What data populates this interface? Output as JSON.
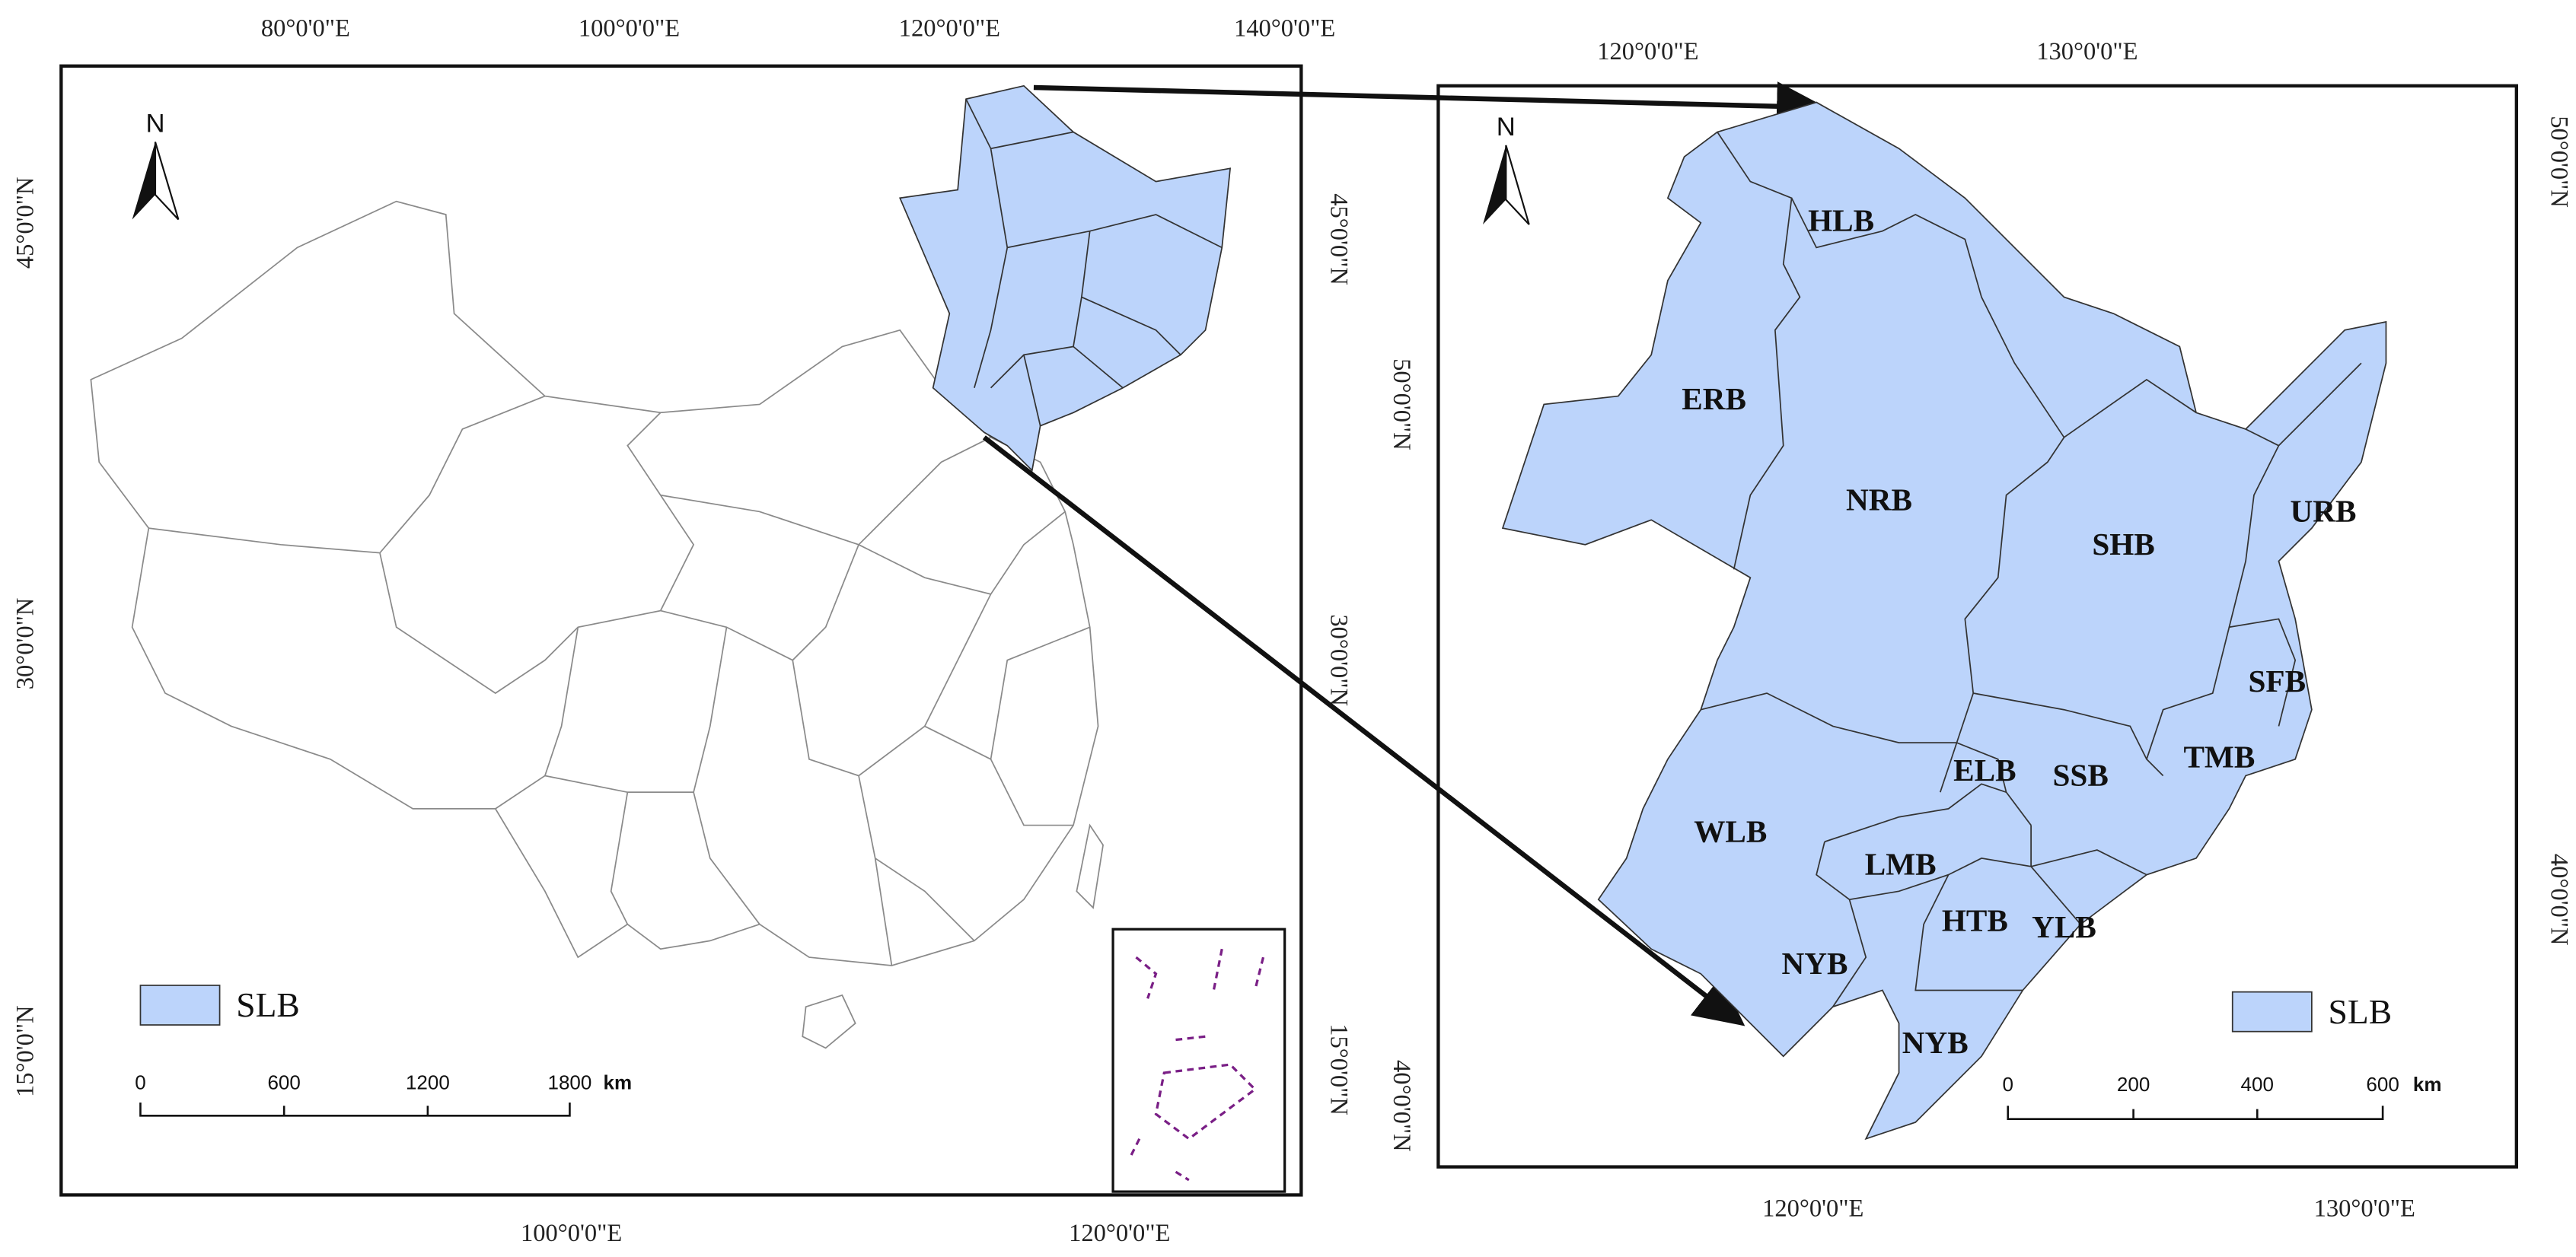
{
  "overview_map": {
    "top_labels": [
      "80°0'0\"E",
      "100°0'0\"E",
      "120°0'0\"E",
      "140°0'0\"E"
    ],
    "bottom_labels": [
      "100°0'0\"E",
      "120°0'0\"E"
    ],
    "left_labels": [
      "45°0'0\"N",
      "30°0'0\"N",
      "15°0'0\"N"
    ],
    "right_labels": [
      "45°0'0\"N",
      "30°0'0\"N",
      "15°0'0\"N"
    ],
    "north": "N",
    "legend": "SLB",
    "scale_labels": [
      "0",
      "600",
      "1200",
      "1800"
    ],
    "scale_unit": "km"
  },
  "detail_map": {
    "top_labels": [
      "120°0'0\"E",
      "130°0'0\"E"
    ],
    "bottom_labels": [
      "120°0'0\"E",
      "130°0'0\"E"
    ],
    "left_labels": [
      "50°0'0\"N",
      "40°0'0\"N"
    ],
    "right_labels": [
      "50°0'0\"N",
      "40°0'0\"N"
    ],
    "north": "N",
    "legend": "SLB",
    "scale_labels": [
      "0",
      "200",
      "400",
      "600"
    ],
    "scale_unit": "km",
    "regions": [
      "HLB",
      "ERB",
      "NRB",
      "SHB",
      "URB",
      "SFB",
      "TMB",
      "ELB",
      "SSB",
      "WLB",
      "LMB",
      "HTB",
      "YLB",
      "NYB",
      "NYB"
    ]
  }
}
